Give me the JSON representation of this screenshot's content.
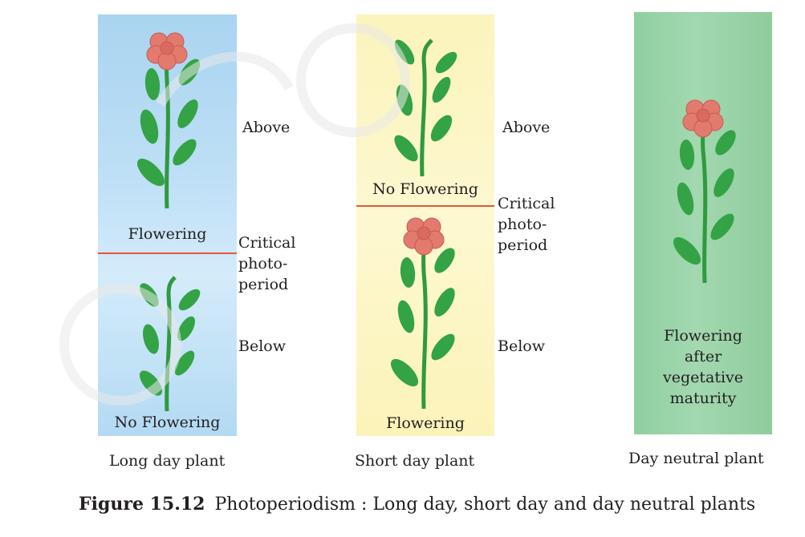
{
  "long_day": {
    "top_label": "Flowering",
    "bottom_label": "No Flowering",
    "above": "Above",
    "critical_1": "Critical",
    "critical_2": "photo-",
    "critical_3": "period",
    "below": "Below",
    "title": "Long day plant"
  },
  "short_day": {
    "top_label": "No Flowering",
    "bottom_label": "Flowering",
    "above": "Above",
    "critical_1": "Critical",
    "critical_2": "photo-",
    "critical_3": "period",
    "below": "Below",
    "title": "Short day plant"
  },
  "day_neutral": {
    "panel_1": "Flowering",
    "panel_2": "after",
    "panel_3": "vegetative",
    "panel_4": "maturity",
    "title": "Day neutral plant"
  },
  "caption": {
    "number": "Figure 15.12",
    "text": "Photoperiodism : Long day, short day and day neutral plants"
  },
  "colors": {
    "stem": "#2f9a3e",
    "leaf": "#33a346",
    "petal": "#e37a6e",
    "critical_line": "#e8543c"
  }
}
